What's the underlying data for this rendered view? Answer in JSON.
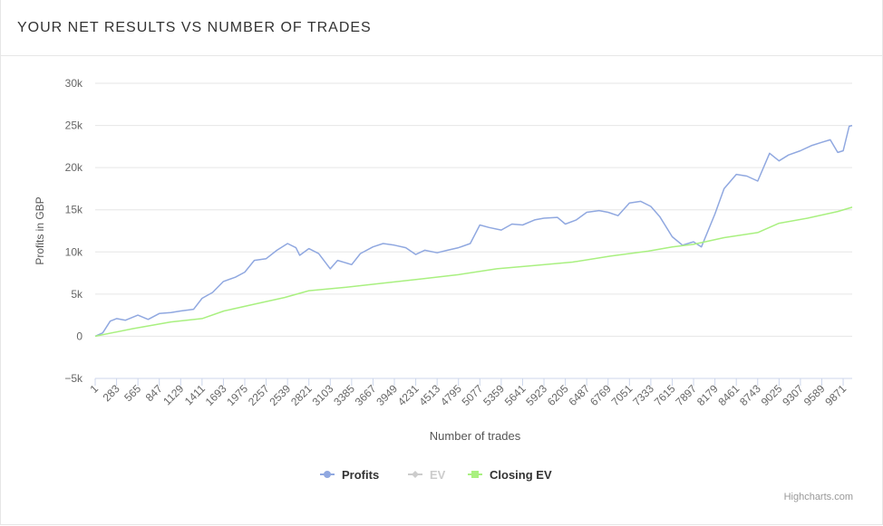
{
  "panel": {
    "title": "YOUR NET RESULTS VS NUMBER OF TRADES"
  },
  "credits": "Highcharts.com",
  "chart_data": {
    "type": "line",
    "title": "",
    "xlabel": "Number of trades",
    "ylabel": "Profits in GBP",
    "xlim": [
      1,
      9990
    ],
    "ylim": [
      -5000,
      30000
    ],
    "yticks": [
      -5000,
      0,
      5000,
      10000,
      15000,
      20000,
      25000,
      30000
    ],
    "ytick_labels": [
      "−5k",
      "0",
      "5k",
      "10k",
      "15k",
      "20k",
      "25k",
      "30k"
    ],
    "xticks": [
      1,
      283,
      565,
      847,
      1129,
      1411,
      1693,
      1975,
      2257,
      2539,
      2821,
      3103,
      3385,
      3667,
      3949,
      4231,
      4513,
      4795,
      5077,
      5359,
      5641,
      5923,
      6205,
      6487,
      6769,
      7051,
      7333,
      7615,
      7897,
      8179,
      8461,
      8743,
      9025,
      9307,
      9589,
      9871
    ],
    "grid": true,
    "legend_position": "bottom-center",
    "series": [
      {
        "name": "Profits",
        "color": "#90a8e0",
        "visible": true,
        "x": [
          1,
          100,
          200,
          283,
          400,
          565,
          700,
          847,
          1000,
          1129,
          1300,
          1411,
          1550,
          1693,
          1850,
          1975,
          2100,
          2257,
          2400,
          2539,
          2650,
          2700,
          2821,
          2950,
          3103,
          3200,
          3385,
          3500,
          3667,
          3800,
          3949,
          4100,
          4231,
          4350,
          4513,
          4650,
          4795,
          4950,
          5077,
          5200,
          5359,
          5500,
          5641,
          5800,
          5923,
          6100,
          6205,
          6350,
          6487,
          6650,
          6769,
          6900,
          7051,
          7200,
          7333,
          7450,
          7615,
          7750,
          7897,
          8000,
          8179,
          8300,
          8461,
          8600,
          8743,
          8900,
          9025,
          9150,
          9307,
          9450,
          9589,
          9700,
          9800,
          9871,
          9950,
          9990
        ],
        "values": [
          0,
          400,
          1800,
          2100,
          1900,
          2500,
          2000,
          2700,
          2800,
          3000,
          3200,
          4500,
          5200,
          6500,
          7000,
          7600,
          9000,
          9200,
          10200,
          11000,
          10500,
          9600,
          10400,
          9800,
          8000,
          9000,
          8500,
          9800,
          10600,
          11000,
          10800,
          10500,
          9700,
          10200,
          9900,
          10200,
          10500,
          11000,
          13200,
          12900,
          12600,
          13300,
          13200,
          13800,
          14000,
          14100,
          13300,
          13800,
          14700,
          14900,
          14700,
          14300,
          15800,
          16000,
          15400,
          14200,
          11800,
          10800,
          11200,
          10600,
          14500,
          17500,
          19200,
          19000,
          18400,
          21700,
          20800,
          21500,
          22000,
          22600,
          23000,
          23300,
          21800,
          22000,
          24900,
          25000
        ]
      },
      {
        "name": "EV",
        "color": "#cccccc",
        "visible": false,
        "x": [],
        "values": []
      },
      {
        "name": "Closing EV",
        "color": "#a9f080",
        "visible": true,
        "x": [
          1,
          500,
          1000,
          1411,
          1700,
          2100,
          2500,
          2821,
          3300,
          3800,
          4300,
          4795,
          5300,
          5800,
          6300,
          6800,
          7300,
          7615,
          7897,
          8300,
          8743,
          9025,
          9400,
          9800,
          9990
        ],
        "values": [
          0,
          900,
          1700,
          2100,
          3000,
          3800,
          4600,
          5400,
          5800,
          6300,
          6800,
          7300,
          8000,
          8400,
          8800,
          9500,
          10100,
          10600,
          10900,
          11700,
          12300,
          13400,
          14000,
          14800,
          15300
        ]
      }
    ]
  }
}
